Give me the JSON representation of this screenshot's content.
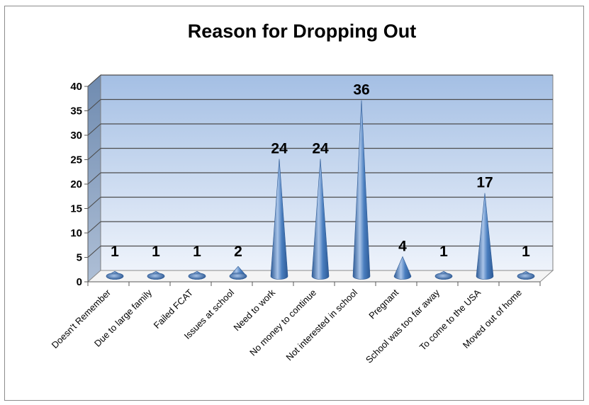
{
  "chart_data": {
    "type": "bar",
    "title": "Reason for Dropping Out",
    "categories": [
      "Doesn't Remember",
      "Due to large family",
      "Failed FCAT",
      "Issues at school",
      "Need to work",
      "No money to continue",
      "Not interested in school",
      "Pregnant",
      "School was too far away",
      "To come to the USA",
      "Moved out of home"
    ],
    "values": [
      1,
      1,
      1,
      2,
      24,
      24,
      36,
      4,
      1,
      17,
      1
    ],
    "data_labels": [
      "1",
      "1",
      "1",
      "2",
      "24",
      "24",
      "36",
      "4",
      "1",
      "17",
      "1"
    ],
    "yticks": [
      "0",
      "5",
      "10",
      "15",
      "20",
      "25",
      "30",
      "35",
      "40"
    ],
    "ylim": [
      0,
      40
    ],
    "grid": true,
    "legend": "none",
    "colors": {
      "cone": "#4a7ebf",
      "cone_light": "#a9c4e8",
      "cone_dark": "#2d5a95",
      "wall_top": "#a4bfe4",
      "wall_bottom": "#eef3fb",
      "side_wall": "#6f8bb0",
      "gridline": "#4d4d4d"
    }
  }
}
